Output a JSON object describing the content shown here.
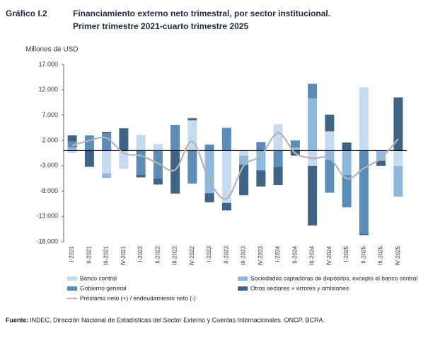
{
  "chart_data": {
    "type": "bar",
    "label": "Gráfico I.2",
    "title": "Financiamiento externo neto trimestral, por sector institucional.",
    "subtitle": "Primer trimestre 2021-cuarto trimestre 2025",
    "y_label": "Millones de USD",
    "source_label": "Fuente:",
    "source": "INDEC, Dirección Nacional de Estadísticas del Sector Externo y Cuentas Internacionales. ONCP. BCRA.",
    "stacked": true,
    "categories": [
      "I-2021",
      "II-2021",
      "III-2021",
      "IV-2021",
      "I-2022",
      "II-2022",
      "III-2022",
      "IV-2022",
      "I-2023",
      "II-2023",
      "III-2023",
      "IV-2023",
      "I-2024",
      "II-2024",
      "III-2024",
      "IV-2024",
      "I-2025",
      "II-2025",
      "III-2025",
      "IV-2025"
    ],
    "series": [
      {
        "name": "Banco central",
        "color": "#c6dbef",
        "values": [
          -500,
          0,
          -4500,
          -3600,
          3100,
          1300,
          0,
          6000,
          0,
          -10300,
          -1000,
          0,
          5200,
          0,
          -3000,
          3800,
          0,
          12500,
          0,
          -3000
        ]
      },
      {
        "name": "Sociedades captadoras de depósitos, excepto el banco central",
        "color": "#8fb8de",
        "values": [
          600,
          0,
          -900,
          0,
          0,
          0,
          0,
          0,
          -8400,
          0,
          -1800,
          -3900,
          0,
          600,
          10300,
          -1900,
          -4800,
          0,
          -2000,
          -6100
        ]
      },
      {
        "name": "Gobierno general",
        "color": "#5b8db8",
        "values": [
          1200,
          3000,
          3400,
          0,
          -4800,
          -5500,
          5100,
          -6500,
          1200,
          4500,
          0,
          1700,
          -3200,
          1400,
          2900,
          -6400,
          -6400,
          -16400,
          0,
          0
        ]
      },
      {
        "name": "Otros sectores + errores y omisiones",
        "color": "#3e6384",
        "values": [
          1200,
          -3200,
          300,
          4400,
          -500,
          -1200,
          -8500,
          400,
          -1800,
          -1500,
          -6000,
          -3200,
          -3600,
          -1000,
          -11800,
          3300,
          1600,
          -300,
          -1000,
          10500
        ]
      }
    ],
    "line": {
      "name": "Préstamo neto (+) / endeudamiento neto (-)",
      "color": "#b4b4b4",
      "values": [
        1000,
        2000,
        2500,
        -500,
        -1000,
        -2500,
        -3800,
        1800,
        -6000,
        -9500,
        -3000,
        -1000,
        3500,
        -500,
        -1500,
        -1500,
        -5500,
        -3500,
        -1500,
        2300
      ]
    },
    "ylim": [
      -18000,
      17000
    ],
    "yticks": [
      {
        "value": 17000,
        "label": "17.000"
      },
      {
        "value": 12000,
        "label": "12.000"
      },
      {
        "value": 7000,
        "label": "7.000"
      },
      {
        "value": 2000,
        "label": "2.000"
      },
      {
        "value": -3000,
        "label": "-3.000"
      },
      {
        "value": -8000,
        "label": "-8.000"
      },
      {
        "value": -13000,
        "label": "-13.000"
      },
      {
        "value": -18000,
        "label": "-18.000"
      }
    ]
  }
}
